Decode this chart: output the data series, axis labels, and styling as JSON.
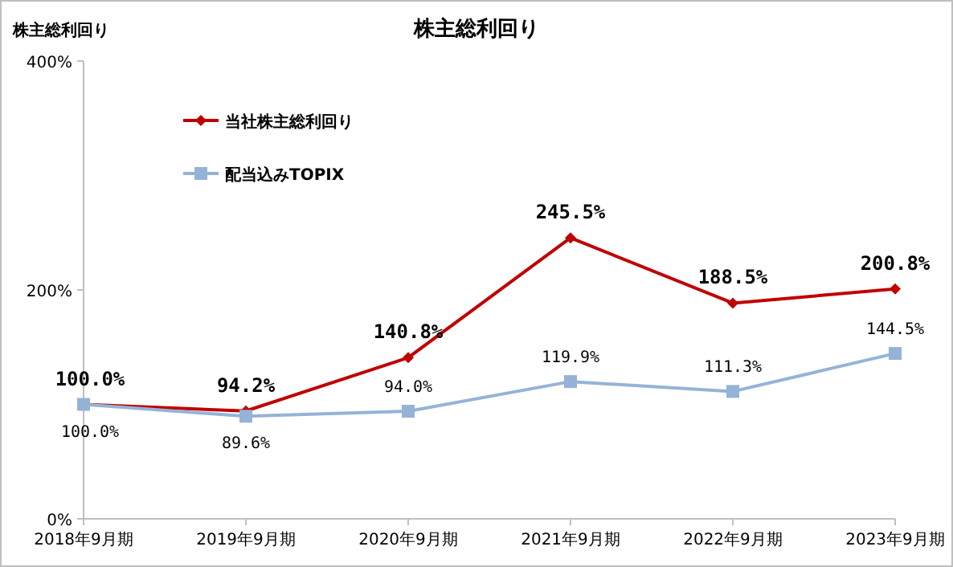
{
  "chart_data": {
    "type": "line",
    "title": "株主総利回り",
    "ylabel": "株主総利回り",
    "categories": [
      "2018年9月期",
      "2019年9月期",
      "2020年9月期",
      "2021年9月期",
      "2022年9月期",
      "2023年9月期"
    ],
    "series": [
      {
        "name": "当社株主総利回り",
        "color": "#c00000",
        "marker": "diamond",
        "values": [
          100.0,
          94.2,
          140.8,
          245.5,
          188.5,
          200.8
        ],
        "value_labels": [
          "100.0%",
          "94.2%",
          "140.8%",
          "245.5%",
          "188.5%",
          "200.8%"
        ]
      },
      {
        "name": "配当込みTOPIX",
        "color": "#95b3d7",
        "marker": "square",
        "values": [
          100.0,
          89.6,
          94.0,
          119.9,
          111.3,
          144.5
        ],
        "value_labels": [
          "100.0%",
          "89.6%",
          "94.0%",
          "119.9%",
          "111.3%",
          "144.5%"
        ]
      }
    ],
    "ylim": [
      0,
      400
    ],
    "yticks": [
      {
        "value": 0,
        "label": "0%"
      },
      {
        "value": 200,
        "label": "200%"
      },
      {
        "value": 400,
        "label": "400%"
      }
    ],
    "grid": false,
    "legend": "top left",
    "line_style": "solid"
  }
}
